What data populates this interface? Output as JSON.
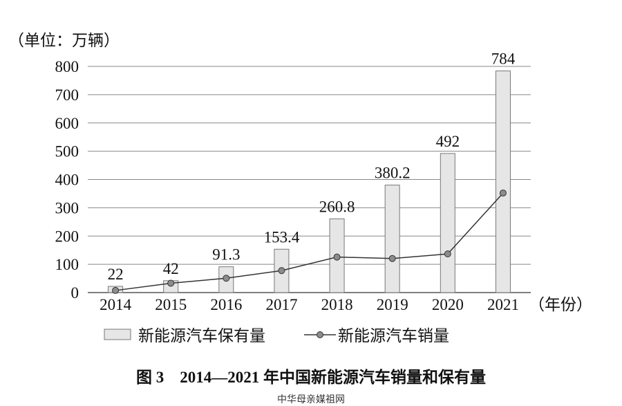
{
  "chart_data": {
    "type": "bar",
    "unit_label": "（单位：万辆）",
    "xlabel": "（年份）",
    "categories": [
      "2014",
      "2015",
      "2016",
      "2017",
      "2018",
      "2019",
      "2020",
      "2021"
    ],
    "ylim": [
      0,
      800
    ],
    "yticks": [
      "0",
      "100",
      "200",
      "300",
      "400",
      "500",
      "600",
      "700",
      "800"
    ],
    "grid": true,
    "legend_position": "bottom",
    "series": [
      {
        "name": "新能源汽车保有量",
        "type": "bar",
        "values": [
          22,
          42,
          91.3,
          153.4,
          260.8,
          380.2,
          492,
          784
        ],
        "labels": [
          "22",
          "42",
          "91.3",
          "153.4",
          "260.8",
          "380.2",
          "492",
          "784"
        ],
        "color": "#e6e6e6"
      },
      {
        "name": "新能源汽车销量",
        "type": "line",
        "values": [
          7.5,
          33.1,
          50.7,
          77.7,
          125.6,
          120.6,
          136.7,
          352.1
        ],
        "color": "#333333",
        "marker_color": "#8c8c8c"
      }
    ]
  },
  "caption": "图 3　2014—2021 年中国新能源汽车销量和保有量",
  "watermark": "中华母亲媒祖网"
}
